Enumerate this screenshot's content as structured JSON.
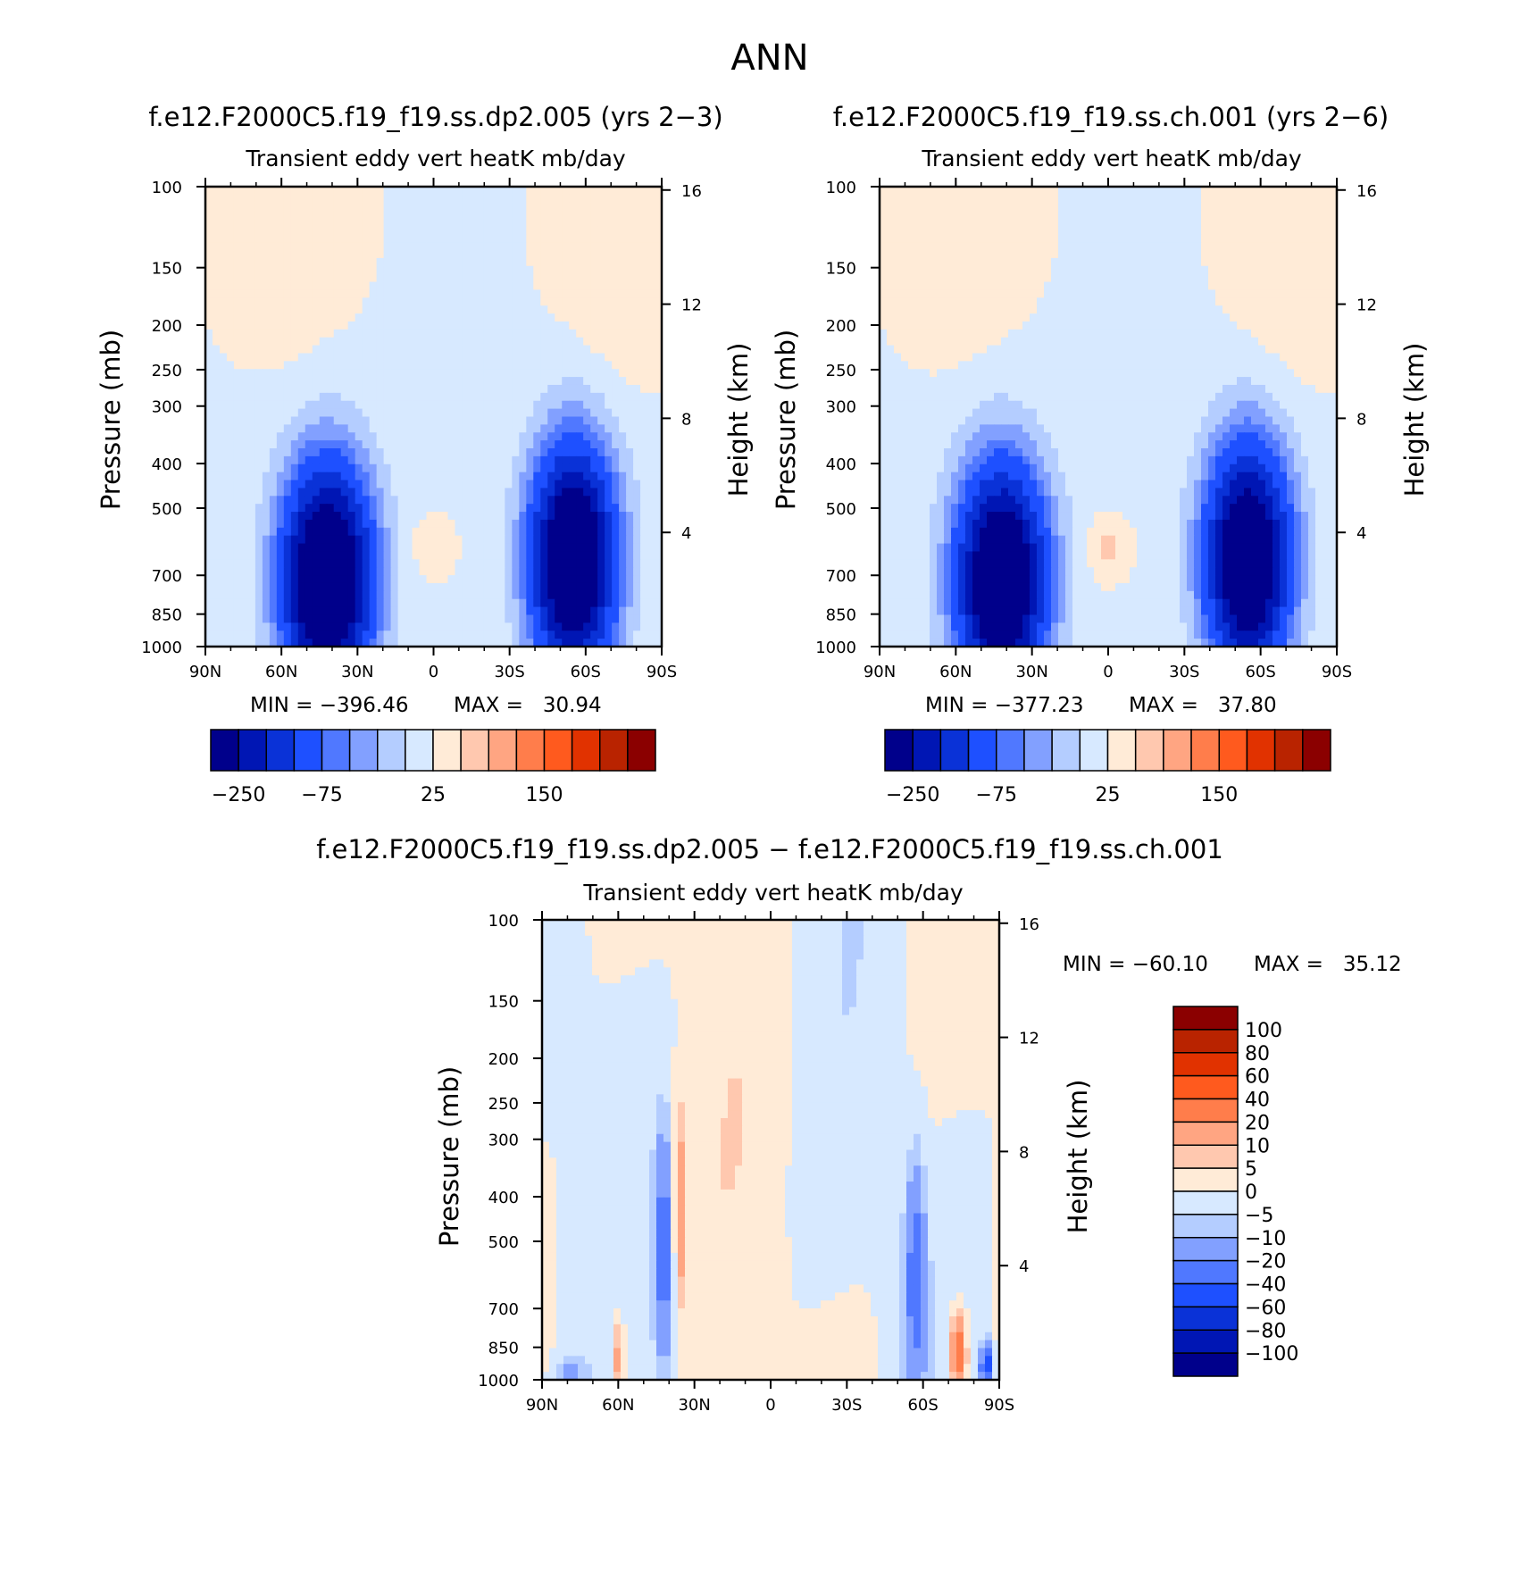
{
  "page": {
    "title": "ANN",
    "diff_title": "f.e12.F2000C5.f19_f19.ss.dp2.005 − f.e12.F2000C5.f19_f19.ss.ch.001"
  },
  "chart_data": [
    {
      "type": "heatmap",
      "title": "f.e12.F2000C5.f19_f19.ss.dp2.005 (yrs 2−3)",
      "subtitle": "Transient eddy vert heatK mb/day",
      "ylabel": "Pressure (mb)",
      "y2label": "Height (km)",
      "x_ticks": [
        "90N",
        "60N",
        "30N",
        "0",
        "30S",
        "60S",
        "90S"
      ],
      "y_ticks": [
        "100",
        "150",
        "200",
        "250",
        "300",
        "400",
        "500",
        "700",
        "850",
        "1000"
      ],
      "y2_ticks": [
        "16",
        "12",
        "8",
        "4"
      ],
      "ylim": [
        1000,
        100
      ],
      "y_scale": "log",
      "min_label": "MIN = −396.46",
      "max_label": "MAX =   30.94",
      "min": -396.46,
      "max": 30.94,
      "colorbar_labels": [
        "−250",
        "−75",
        "25",
        "150"
      ],
      "colors": [
        "#00008b",
        "#0016b4",
        "#0a32d7",
        "#1e50ff",
        "#5078ff",
        "#82a0ff",
        "#b4cdff",
        "#d7e9ff",
        "#ffebd7",
        "#ffc8af",
        "#ffa582",
        "#ff7d4b",
        "#ff5a1e",
        "#e13200",
        "#b92300",
        "#8b0000"
      ],
      "lobes": [
        {
          "lat": 42,
          "p": 720,
          "amp": -396.46
        },
        {
          "lat": -55,
          "p": 650,
          "amp": -380
        }
      ],
      "pos_features": [
        {
          "lat": 0,
          "p": 610,
          "amp": 30.94
        },
        {
          "lat": 60,
          "p": 150,
          "amp": 20
        },
        {
          "lat": -75,
          "p": 170,
          "amp": 20
        }
      ]
    },
    {
      "type": "heatmap",
      "title": "f.e12.F2000C5.f19_f19.ss.ch.001 (yrs 2−6)",
      "subtitle": "Transient eddy vert heatK mb/day",
      "ylabel": "Pressure (mb)",
      "y2label": "Height (km)",
      "x_ticks": [
        "90N",
        "60N",
        "30N",
        "0",
        "30S",
        "60S",
        "90S"
      ],
      "y_ticks": [
        "100",
        "150",
        "200",
        "250",
        "300",
        "400",
        "500",
        "700",
        "850",
        "1000"
      ],
      "y2_ticks": [
        "16",
        "12",
        "8",
        "4"
      ],
      "ylim": [
        1000,
        100
      ],
      "y_scale": "log",
      "min_label": "MIN = −377.23",
      "max_label": "MAX =   37.80",
      "min": -377.23,
      "max": 37.8,
      "colorbar_labels": [
        "−250",
        "−75",
        "25",
        "150"
      ],
      "colors": [
        "#00008b",
        "#0016b4",
        "#0a32d7",
        "#1e50ff",
        "#5078ff",
        "#82a0ff",
        "#b4cdff",
        "#d7e9ff",
        "#ffebd7",
        "#ffc8af",
        "#ffa582",
        "#ff7d4b",
        "#ff5a1e",
        "#e13200",
        "#b92300",
        "#8b0000"
      ],
      "lobes": [
        {
          "lat": 42,
          "p": 720,
          "amp": -377.23
        },
        {
          "lat": -55,
          "p": 650,
          "amp": -370
        }
      ],
      "pos_features": [
        {
          "lat": 0,
          "p": 610,
          "amp": 37.8
        },
        {
          "lat": 60,
          "p": 150,
          "amp": 20
        },
        {
          "lat": -75,
          "p": 170,
          "amp": 20
        }
      ]
    },
    {
      "type": "heatmap",
      "title": "f.e12.F2000C5.f19_f19.ss.dp2.005 − f.e12.F2000C5.f19_f19.ss.ch.001",
      "subtitle": "Transient eddy vert heatK mb/day",
      "ylabel": "Pressure (mb)",
      "y2label": "Height (km)",
      "x_ticks": [
        "90N",
        "60N",
        "30N",
        "0",
        "30S",
        "60S",
        "90S"
      ],
      "y_ticks": [
        "100",
        "150",
        "200",
        "250",
        "300",
        "400",
        "500",
        "700",
        "850",
        "1000"
      ],
      "y2_ticks": [
        "16",
        "12",
        "8",
        "4"
      ],
      "ylim": [
        1000,
        100
      ],
      "y_scale": "log",
      "min_label": "MIN = −60.10",
      "max_label": "MAX =   35.12",
      "min": -60.1,
      "max": 35.12,
      "colorbar_labels": [
        "100",
        "80",
        "60",
        "40",
        "20",
        "10",
        "5",
        "0",
        "−5",
        "−10",
        "−20",
        "−40",
        "−60",
        "−80",
        "−100"
      ],
      "levels": [
        -100,
        -80,
        -60,
        -40,
        -20,
        -10,
        -5,
        0,
        5,
        10,
        20,
        40,
        60,
        80,
        100
      ],
      "colors": [
        "#00008b",
        "#0016b4",
        "#0a32d7",
        "#1e50ff",
        "#5078ff",
        "#82a0ff",
        "#b4cdff",
        "#d7e9ff",
        "#ffebd7",
        "#ffc8af",
        "#ffa582",
        "#ff7d4b",
        "#ff5a1e",
        "#e13200",
        "#b92300",
        "#8b0000"
      ]
    }
  ]
}
